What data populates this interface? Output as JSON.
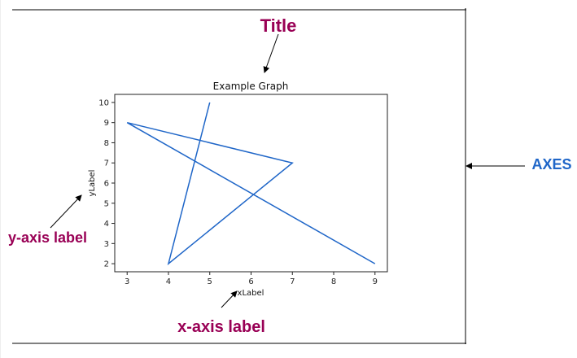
{
  "annotations": {
    "title_label": "Title",
    "axes_label": "AXES",
    "ylabel_label": "y-axis label",
    "xlabel_label": "x-axis label",
    "colors": {
      "maroon": "#990055",
      "blue": "#1f66c8"
    }
  },
  "chart_data": {
    "type": "line",
    "title": "Example Graph",
    "xlabel": "xLabel",
    "ylabel": "yLabel",
    "x": [
      5,
      4,
      7,
      3,
      9
    ],
    "y": [
      10,
      2,
      7,
      9,
      2
    ],
    "xlim": [
      2.7,
      9.3
    ],
    "ylim": [
      1.6,
      10.4
    ],
    "xticks": [
      "3",
      "4",
      "5",
      "6",
      "7",
      "8",
      "9"
    ],
    "yticks": [
      "2",
      "3",
      "4",
      "5",
      "6",
      "7",
      "8",
      "9",
      "10"
    ],
    "grid": false,
    "line_color": "#1f66c8"
  }
}
